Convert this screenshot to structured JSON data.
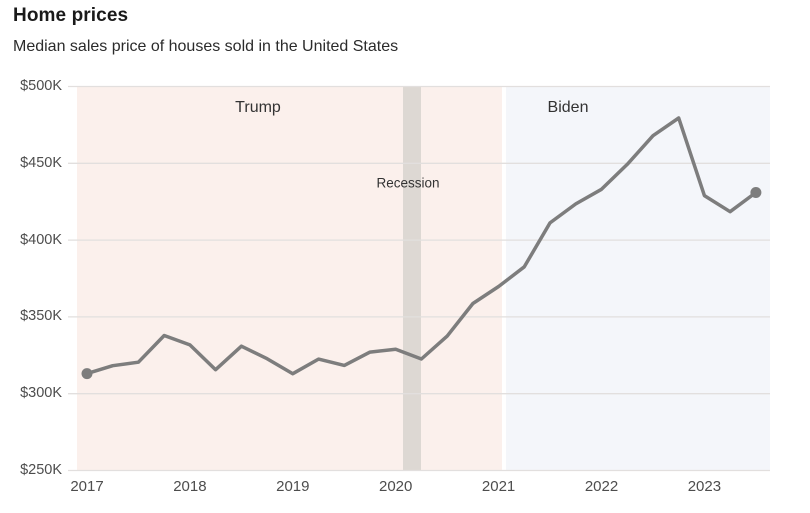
{
  "title": "Home prices",
  "subtitle": "Median sales price of houses sold in the United States",
  "colors": {
    "trump_region": "#fbf0ec",
    "biden_region": "#f4f6fa",
    "recession_band": "#ddd8d3",
    "gridline": "#e2dfde",
    "line": "#7d7d7d",
    "marker": "#7d7d7d",
    "title_text": "#1a1a1a",
    "annotation_text": "#333333",
    "tick_text": "#4d4d4d"
  },
  "chart_data": {
    "type": "line",
    "title": "Home prices",
    "subtitle": "Median sales price of houses sold in the United States",
    "unit": "USD",
    "grid": true,
    "legend_position": "none",
    "ylim": [
      250000,
      500000
    ],
    "xlim": [
      2016.9,
      2023.64
    ],
    "x": [
      2017.0,
      2017.25,
      2017.5,
      2017.75,
      2018.0,
      2018.25,
      2018.5,
      2018.75,
      2019.0,
      2019.25,
      2019.5,
      2019.75,
      2020.0,
      2020.25,
      2020.5,
      2020.75,
      2021.0,
      2021.25,
      2021.5,
      2021.75,
      2022.0,
      2022.25,
      2022.5,
      2022.75,
      2023.0,
      2023.25,
      2023.5
    ],
    "series": [
      {
        "name": "Median sales price",
        "values": [
          313100,
          318200,
          320500,
          337900,
          331800,
          315600,
          330900,
          322800,
          313000,
          322500,
          318400,
          327100,
          329000,
          322600,
          337500,
          358700,
          369800,
          382600,
          411200,
          423600,
          433100,
          449300,
          468000,
          479500,
          429000,
          418500,
          431000
        ]
      }
    ],
    "y_ticks": [
      {
        "label": "$500K",
        "value": 500000
      },
      {
        "label": "$450K",
        "value": 450000
      },
      {
        "label": "$400K",
        "value": 400000
      },
      {
        "label": "$350K",
        "value": 350000
      },
      {
        "label": "$300K",
        "value": 300000
      },
      {
        "label": "$250K",
        "value": 250000
      }
    ],
    "x_ticks": [
      {
        "label": "2017",
        "value": 2017
      },
      {
        "label": "2018",
        "value": 2018
      },
      {
        "label": "2019",
        "value": 2019
      },
      {
        "label": "2020",
        "value": 2020
      },
      {
        "label": "2021",
        "value": 2021
      },
      {
        "label": "2022",
        "value": 2022
      },
      {
        "label": "2023",
        "value": 2023
      }
    ],
    "annotations": {
      "trump": "Trump",
      "biden": "Biden",
      "recession": "Recession"
    },
    "regions": [
      {
        "name": "trump",
        "start": 2016.9,
        "end": 2021.03,
        "color": "#fbf0ec"
      },
      {
        "name": "biden",
        "start": 2021.07,
        "end": 2023.64,
        "color": "#f4f6fa"
      },
      {
        "name": "recession",
        "start": 2020.07,
        "end": 2020.25,
        "color": "#ddd8d3"
      }
    ],
    "endpoint_markers": [
      {
        "x": 2017.0,
        "value": 313100
      },
      {
        "x": 2023.5,
        "value": 431000
      }
    ]
  }
}
